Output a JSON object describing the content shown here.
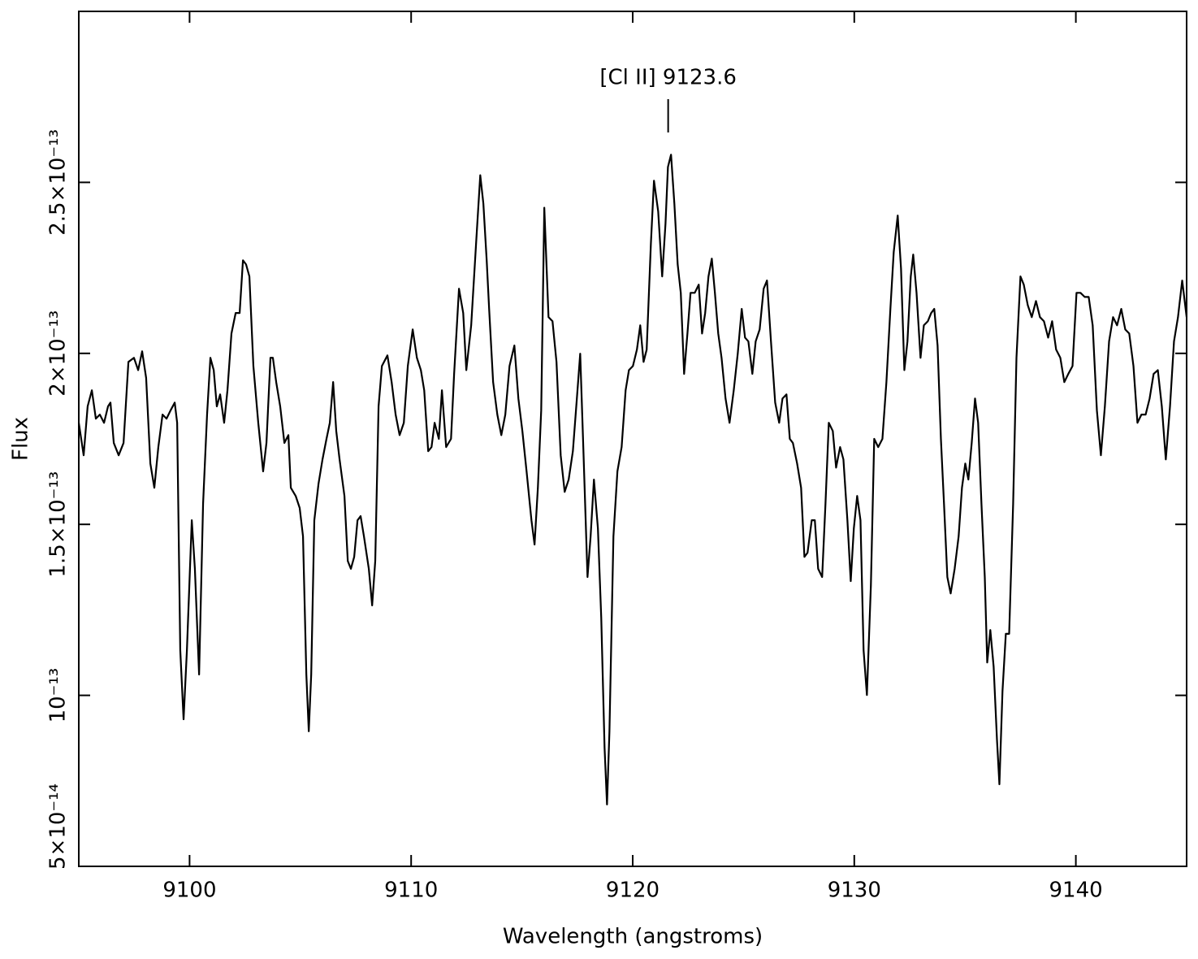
{
  "chart_data": {
    "type": "line",
    "xlabel": "Wavelength (angstroms)",
    "ylabel": "Flux",
    "annotation": {
      "text": "[Cl II] 9123.6",
      "x": 9121.6
    },
    "color": "#000000",
    "xlim": [
      9095,
      9145
    ],
    "xticks": [
      9100,
      9110,
      9120,
      9130,
      9140
    ],
    "ylim": [
      5e-14,
      3e-13
    ],
    "yticks": [
      {
        "value": 5e-14,
        "label": "5×10⁻¹⁴"
      },
      {
        "value": 1e-13,
        "label": "10⁻¹³"
      },
      {
        "value": 1.5e-13,
        "label": "1.5×10⁻¹³"
      },
      {
        "value": 2e-13,
        "label": "2×10⁻¹³"
      },
      {
        "value": 2.5e-13,
        "label": "2.5×10⁻¹³"
      }
    ],
    "x": [
      9095.0,
      9095.22,
      9095.4,
      9095.59,
      9095.77,
      9095.95,
      9096.14,
      9096.32,
      9096.43,
      9096.58,
      9096.8,
      9097.02,
      9097.24,
      9097.49,
      9097.68,
      9097.86,
      9098.04,
      9098.23,
      9098.41,
      9098.59,
      9098.78,
      9098.96,
      9099.14,
      9099.33,
      9099.44,
      9099.58,
      9099.73,
      9099.88,
      9100.1,
      9100.24,
      9100.43,
      9100.61,
      9100.79,
      9100.94,
      9101.09,
      9101.23,
      9101.38,
      9101.56,
      9101.71,
      9101.89,
      9102.08,
      9102.26,
      9102.41,
      9102.55,
      9102.7,
      9102.88,
      9103.1,
      9103.32,
      9103.47,
      9103.65,
      9103.76,
      9103.91,
      9104.09,
      9104.28,
      9104.46,
      9104.57,
      9104.79,
      9104.97,
      9105.12,
      9105.27,
      9105.38,
      9105.49,
      9105.63,
      9105.82,
      9106.0,
      9106.18,
      9106.33,
      9106.48,
      9106.62,
      9106.77,
      9106.99,
      9107.14,
      9107.28,
      9107.43,
      9107.58,
      9107.72,
      9107.87,
      9108.09,
      9108.24,
      9108.38,
      9108.53,
      9108.68,
      9108.93,
      9109.12,
      9109.3,
      9109.48,
      9109.67,
      9109.85,
      9110.07,
      9110.26,
      9110.44,
      9110.59,
      9110.77,
      9110.92,
      9111.06,
      9111.25,
      9111.39,
      9111.58,
      9111.8,
      9111.94,
      9112.16,
      9112.35,
      9112.49,
      9112.71,
      9112.93,
      9113.12,
      9113.26,
      9113.41,
      9113.52,
      9113.7,
      9113.89,
      9114.07,
      9114.25,
      9114.44,
      9114.66,
      9114.84,
      9115.02,
      9115.21,
      9115.43,
      9115.57,
      9115.72,
      9115.87,
      9116.01,
      9116.2,
      9116.38,
      9116.56,
      9116.75,
      9116.93,
      9117.11,
      9117.3,
      9117.48,
      9117.63,
      9117.77,
      9117.96,
      9118.1,
      9118.25,
      9118.43,
      9118.58,
      9118.73,
      9118.84,
      9118.95,
      9119.13,
      9119.31,
      9119.5,
      9119.68,
      9119.83,
      9120.01,
      9120.19,
      9120.34,
      9120.49,
      9120.63,
      9120.82,
      9120.96,
      9121.15,
      9121.33,
      9121.48,
      9121.59,
      9121.73,
      9121.88,
      9122.03,
      9122.17,
      9122.32,
      9122.47,
      9122.61,
      9122.8,
      9122.98,
      9123.13,
      9123.27,
      9123.42,
      9123.57,
      9123.71,
      9123.86,
      9124.01,
      9124.19,
      9124.37,
      9124.56,
      9124.74,
      9124.92,
      9125.07,
      9125.22,
      9125.4,
      9125.55,
      9125.73,
      9125.91,
      9126.06,
      9126.24,
      9126.43,
      9126.61,
      9126.76,
      9126.94,
      9127.09,
      9127.23,
      9127.42,
      9127.6,
      9127.75,
      9127.89,
      9128.08,
      9128.22,
      9128.37,
      9128.55,
      9128.7,
      9128.85,
      9129.03,
      9129.18,
      9129.36,
      9129.51,
      9129.69,
      9129.84,
      9129.98,
      9130.13,
      9130.28,
      9130.42,
      9130.57,
      9130.75,
      9130.9,
      9131.08,
      9131.27,
      9131.45,
      9131.63,
      9131.78,
      9131.96,
      9132.11,
      9132.26,
      9132.4,
      9132.55,
      9132.66,
      9132.81,
      9132.99,
      9133.14,
      9133.32,
      9133.47,
      9133.61,
      9133.76,
      9133.91,
      9134.05,
      9134.2,
      9134.35,
      9134.53,
      9134.71,
      9134.86,
      9135.01,
      9135.15,
      9135.3,
      9135.45,
      9135.59,
      9135.74,
      9135.89,
      9136.0,
      9136.14,
      9136.29,
      9136.44,
      9136.55,
      9136.69,
      9136.84,
      9136.99,
      9137.17,
      9137.32,
      9137.5,
      9137.65,
      9137.83,
      9138.01,
      9138.2,
      9138.38,
      9138.56,
      9138.75,
      9138.93,
      9139.11,
      9139.3,
      9139.48,
      9139.66,
      9139.85,
      9140.03,
      9140.21,
      9140.4,
      9140.58,
      9140.76,
      9140.95,
      9141.13,
      9141.31,
      9141.5,
      9141.68,
      9141.86,
      9142.05,
      9142.23,
      9142.41,
      9142.6,
      9142.78,
      9142.96,
      9143.15,
      9143.33,
      9143.51,
      9143.7,
      9143.88,
      9144.06,
      9144.25,
      9144.43,
      9144.61,
      9144.8,
      9145.0
    ],
    "values": [
      1.797e-13,
      1.702e-13,
      1.845e-13,
      1.892e-13,
      1.809e-13,
      1.821e-13,
      1.797e-13,
      1.845e-13,
      1.856e-13,
      1.738e-13,
      1.702e-13,
      1.738e-13,
      1.975e-13,
      1.987e-13,
      1.951e-13,
      2.006e-13,
      1.928e-13,
      1.678e-13,
      1.607e-13,
      1.726e-13,
      1.821e-13,
      1.809e-13,
      1.833e-13,
      1.856e-13,
      1.797e-13,
      1.132e-13,
      9.3e-14,
      1.132e-13,
      1.512e-13,
      1.37e-13,
      1.061e-13,
      1.56e-13,
      1.821e-13,
      1.987e-13,
      1.951e-13,
      1.845e-13,
      1.88e-13,
      1.797e-13,
      1.892e-13,
      2.058e-13,
      2.118e-13,
      2.118e-13,
      2.272e-13,
      2.26e-13,
      2.225e-13,
      1.963e-13,
      1.797e-13,
      1.655e-13,
      1.738e-13,
      1.987e-13,
      1.987e-13,
      1.916e-13,
      1.845e-13,
      1.738e-13,
      1.761e-13,
      1.607e-13,
      1.583e-13,
      1.548e-13,
      1.465e-13,
      1.061e-13,
      8.95e-14,
      1.061e-13,
      1.512e-13,
      1.619e-13,
      1.69e-13,
      1.75e-13,
      1.797e-13,
      1.916e-13,
      1.773e-13,
      1.69e-13,
      1.583e-13,
      1.393e-13,
      1.37e-13,
      1.405e-13,
      1.512e-13,
      1.524e-13,
      1.465e-13,
      1.37e-13,
      1.263e-13,
      1.393e-13,
      1.845e-13,
      1.963e-13,
      1.994e-13,
      1.916e-13,
      1.821e-13,
      1.761e-13,
      1.797e-13,
      1.963e-13,
      2.07e-13,
      1.987e-13,
      1.951e-13,
      1.892e-13,
      1.714e-13,
      1.726e-13,
      1.797e-13,
      1.75e-13,
      1.892e-13,
      1.726e-13,
      1.75e-13,
      1.94e-13,
      2.189e-13,
      2.118e-13,
      1.951e-13,
      2.082e-13,
      2.32e-13,
      2.521e-13,
      2.438e-13,
      2.272e-13,
      2.13e-13,
      1.916e-13,
      1.821e-13,
      1.761e-13,
      1.821e-13,
      1.963e-13,
      2.023e-13,
      1.868e-13,
      1.773e-13,
      1.655e-13,
      1.512e-13,
      1.441e-13,
      1.607e-13,
      1.833e-13,
      2.426e-13,
      2.106e-13,
      2.094e-13,
      1.975e-13,
      1.702e-13,
      1.595e-13,
      1.631e-13,
      1.714e-13,
      1.868e-13,
      1.999e-13,
      1.726e-13,
      1.346e-13,
      1.465e-13,
      1.631e-13,
      1.488e-13,
      1.227e-13,
      8.47e-14,
      6.81e-14,
      8.95e-14,
      1.465e-13,
      1.655e-13,
      1.726e-13,
      1.892e-13,
      1.951e-13,
      1.963e-13,
      2.011e-13,
      2.082e-13,
      1.975e-13,
      2.011e-13,
      2.32e-13,
      2.505e-13,
      2.415e-13,
      2.225e-13,
      2.379e-13,
      2.545e-13,
      2.581e-13,
      2.438e-13,
      2.26e-13,
      2.177e-13,
      1.94e-13,
      2.058e-13,
      2.177e-13,
      2.177e-13,
      2.201e-13,
      2.058e-13,
      2.118e-13,
      2.225e-13,
      2.277e-13,
      2.177e-13,
      2.058e-13,
      1.987e-13,
      1.868e-13,
      1.797e-13,
      1.892e-13,
      1.999e-13,
      2.13e-13,
      2.046e-13,
      2.035e-13,
      1.94e-13,
      2.035e-13,
      2.07e-13,
      2.189e-13,
      2.213e-13,
      2.035e-13,
      1.856e-13,
      1.797e-13,
      1.868e-13,
      1.88e-13,
      1.75e-13,
      1.738e-13,
      1.678e-13,
      1.607e-13,
      1.405e-13,
      1.417e-13,
      1.512e-13,
      1.512e-13,
      1.37e-13,
      1.346e-13,
      1.56e-13,
      1.797e-13,
      1.773e-13,
      1.666e-13,
      1.726e-13,
      1.69e-13,
      1.512e-13,
      1.334e-13,
      1.488e-13,
      1.583e-13,
      1.512e-13,
      1.132e-13,
      1.001e-13,
      1.322e-13,
      1.75e-13,
      1.726e-13,
      1.75e-13,
      1.916e-13,
      2.13e-13,
      2.296e-13,
      2.403e-13,
      2.248e-13,
      1.951e-13,
      2.035e-13,
      2.225e-13,
      2.289e-13,
      2.177e-13,
      1.987e-13,
      2.082e-13,
      2.094e-13,
      2.118e-13,
      2.13e-13,
      2.023e-13,
      1.75e-13,
      1.56e-13,
      1.346e-13,
      1.298e-13,
      1.37e-13,
      1.465e-13,
      1.607e-13,
      1.678e-13,
      1.631e-13,
      1.738e-13,
      1.868e-13,
      1.797e-13,
      1.56e-13,
      1.346e-13,
      1.096e-13,
      1.191e-13,
      1.084e-13,
      8.71e-14,
      7.4e-14,
      1.013e-13,
      1.18e-13,
      1.18e-13,
      1.56e-13,
      1.987e-13,
      2.225e-13,
      2.201e-13,
      2.141e-13,
      2.106e-13,
      2.153e-13,
      2.106e-13,
      2.094e-13,
      2.046e-13,
      2.094e-13,
      2.011e-13,
      1.987e-13,
      1.916e-13,
      1.94e-13,
      1.963e-13,
      2.177e-13,
      2.177e-13,
      2.165e-13,
      2.165e-13,
      2.082e-13,
      1.833e-13,
      1.702e-13,
      1.845e-13,
      2.035e-13,
      2.106e-13,
      2.082e-13,
      2.13e-13,
      2.07e-13,
      2.058e-13,
      1.963e-13,
      1.797e-13,
      1.821e-13,
      1.821e-13,
      1.868e-13,
      1.94e-13,
      1.951e-13,
      1.845e-13,
      1.69e-13,
      1.845e-13,
      2.035e-13,
      2.106e-13,
      2.213e-13,
      2.106e-13
    ]
  }
}
